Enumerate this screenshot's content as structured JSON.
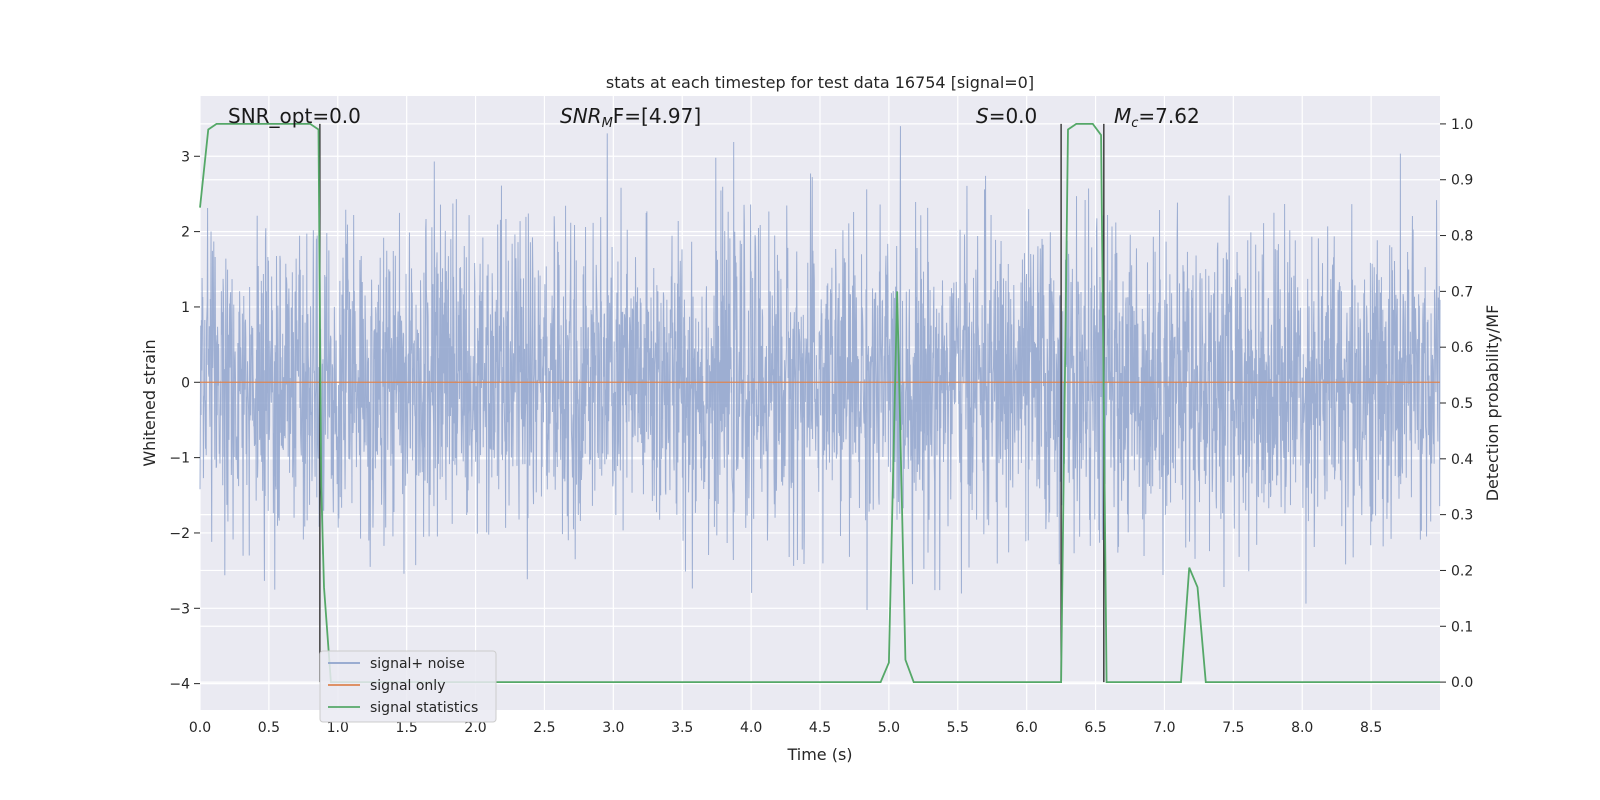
{
  "chart_data": {
    "type": "line",
    "title": "stats at each timestep for test data 16754 [signal=0]",
    "xlabel": "Time (s)",
    "ylabel": "Whitened strain",
    "y2label": "Detection probability/MF",
    "xlim": [
      0.0,
      9.0
    ],
    "ylim": [
      -4.35,
      3.8
    ],
    "y2lim": [
      -0.05,
      1.05
    ],
    "xticks": [
      "0.0",
      "0.5",
      "1.0",
      "1.5",
      "2.0",
      "2.5",
      "3.0",
      "3.5",
      "4.0",
      "4.5",
      "5.0",
      "5.5",
      "6.0",
      "6.5",
      "7.0",
      "7.5",
      "8.0",
      "8.5"
    ],
    "yticks": [
      "3",
      "2",
      "1",
      "0",
      "−1",
      "−2",
      "−3",
      "−4"
    ],
    "y2ticks": [
      "1.0",
      "0.9",
      "0.8",
      "0.7",
      "0.6",
      "0.5",
      "0.4",
      "0.3",
      "0.2",
      "0.1",
      "0.0"
    ],
    "grid": true,
    "legend_position": "lower-left",
    "annotations": {
      "snr_opt": "SNR_opt=0.0",
      "snr_mf_base": "SNR",
      "snr_mf_sub": "M",
      "snr_mf_rest": "F=[4.97]",
      "s_var": "S",
      "s_rest": "=0.0",
      "mc_base": "M",
      "mc_sub": "c",
      "mc_rest": "=7.62"
    },
    "series": [
      {
        "name": "signal+ noise",
        "color": "#8fa3cc",
        "description_range": [
          -3.4,
          3.4
        ]
      },
      {
        "name": "signal only",
        "color": "#dd8452",
        "y": 0
      },
      {
        "name": "signal statistics",
        "color": "#55a868",
        "x": [
          0.0,
          0.06,
          0.12,
          0.2,
          0.4,
          0.6,
          0.8,
          0.86,
          0.88,
          0.9,
          0.95,
          1.0,
          1.5,
          2.0,
          3.0,
          4.0,
          4.94,
          5.0,
          5.06,
          5.12,
          5.18,
          5.5,
          6.0,
          6.25,
          6.3,
          6.36,
          6.48,
          6.54,
          6.58,
          6.62,
          6.7,
          7.12,
          7.18,
          7.24,
          7.3,
          7.4,
          8.0,
          9.0
        ],
        "values": [
          0.85,
          0.99,
          1.0,
          1.0,
          1.0,
          1.0,
          1.0,
          0.99,
          0.35,
          0.17,
          0.0,
          0.0,
          0.0,
          0.0,
          0.0,
          0.0,
          0.0,
          0.035,
          0.7,
          0.04,
          0.0,
          0.0,
          0.0,
          0.0,
          0.99,
          1.0,
          1.0,
          0.98,
          0.0,
          0.0,
          0.0,
          0.0,
          0.205,
          0.17,
          0.0,
          0.0,
          0.0,
          0.0
        ]
      }
    ],
    "vertical_lines_x": [
      0.87,
      6.25,
      6.56
    ]
  }
}
